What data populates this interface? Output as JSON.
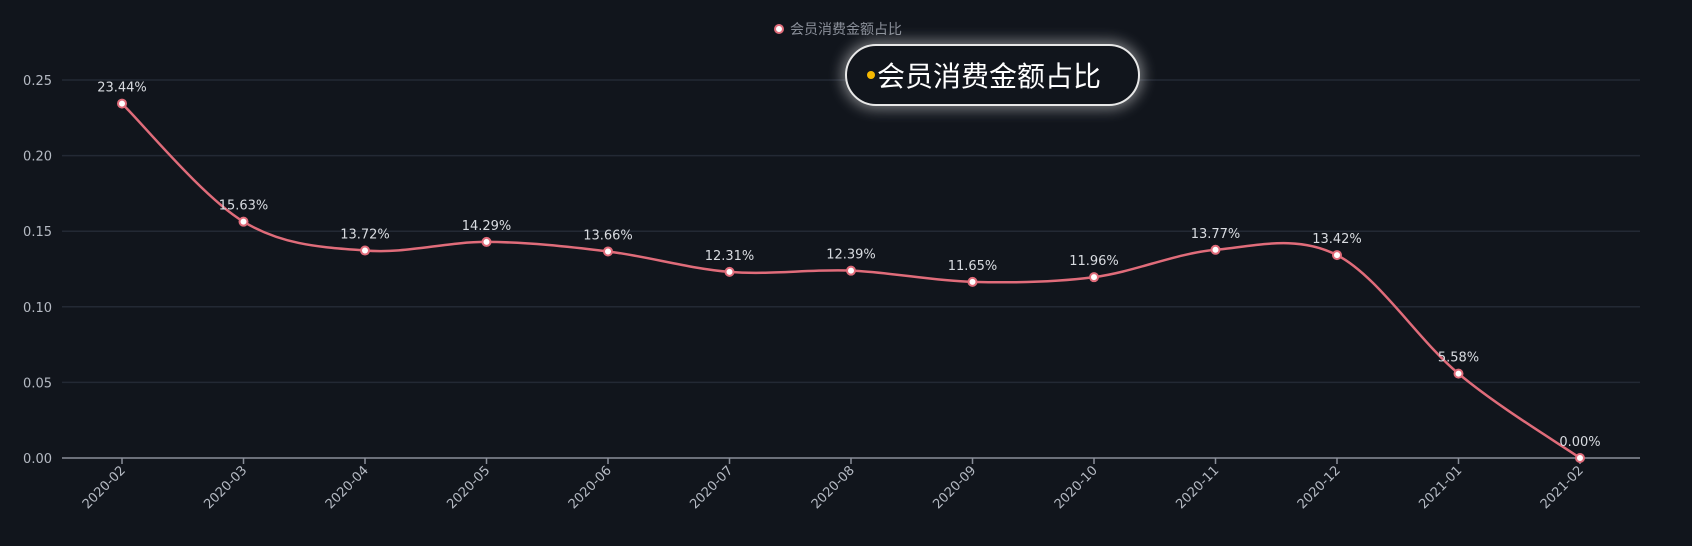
{
  "colors": {
    "background": "#11151c",
    "line": "#e06c7a",
    "grid": "#232934",
    "axis": "#8a8f99",
    "tooltip_dot": "#f5b800"
  },
  "legend": {
    "label": "会员消费金额占比"
  },
  "tooltip": {
    "label": "会员消费金额占比"
  },
  "chart_data": {
    "type": "line",
    "title": "",
    "xlabel": "",
    "ylabel": "",
    "categories": [
      "2020-02",
      "2020-03",
      "2020-04",
      "2020-05",
      "2020-06",
      "2020-07",
      "2020-08",
      "2020-09",
      "2020-10",
      "2020-11",
      "2020-12",
      "2021-01",
      "2021-02"
    ],
    "series": [
      {
        "name": "会员消费金额占比",
        "values": [
          0.2344,
          0.1563,
          0.1372,
          0.1429,
          0.1366,
          0.1231,
          0.1239,
          0.1165,
          0.1196,
          0.1377,
          0.1342,
          0.0558,
          0.0
        ],
        "data_labels": [
          "23.44%",
          "15.63%",
          "13.72%",
          "14.29%",
          "13.66%",
          "12.31%",
          "12.39%",
          "11.65%",
          "11.96%",
          "13.77%",
          "13.42%",
          "5.58%",
          "0.00%"
        ]
      }
    ],
    "ylim": [
      0,
      0.25
    ],
    "yticks": [
      "0.00",
      "0.05",
      "0.10",
      "0.15",
      "0.20",
      "0.25"
    ],
    "grid": true,
    "smooth": true,
    "legend_position": "top-center"
  }
}
